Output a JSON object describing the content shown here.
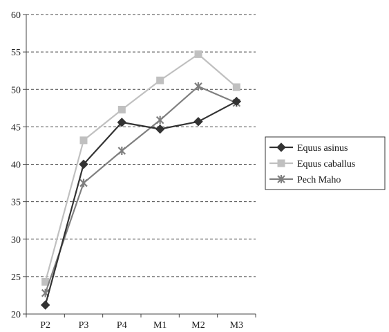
{
  "chart_data": {
    "type": "line",
    "categories": [
      "P2",
      "P3",
      "P4",
      "M1",
      "M2",
      "M3"
    ],
    "ylim": [
      20,
      60
    ],
    "yticks": [
      20,
      25,
      30,
      35,
      40,
      45,
      50,
      55,
      60
    ],
    "grid": "horizontal-dashed",
    "legend_position": "right",
    "series": [
      {
        "name": "Equus asinus",
        "values": [
          21.2,
          40.0,
          45.6,
          44.7,
          45.7,
          48.4
        ],
        "color": "#333333",
        "marker": "diamond"
      },
      {
        "name": "Equus caballus",
        "values": [
          24.3,
          43.2,
          47.3,
          51.2,
          54.7,
          50.3
        ],
        "color": "#c0c0c0",
        "marker": "square"
      },
      {
        "name": "Pech Maho",
        "values": [
          22.8,
          37.5,
          41.8,
          45.9,
          50.4,
          48.2
        ],
        "color": "#7f7f7f",
        "marker": "star"
      }
    ]
  }
}
